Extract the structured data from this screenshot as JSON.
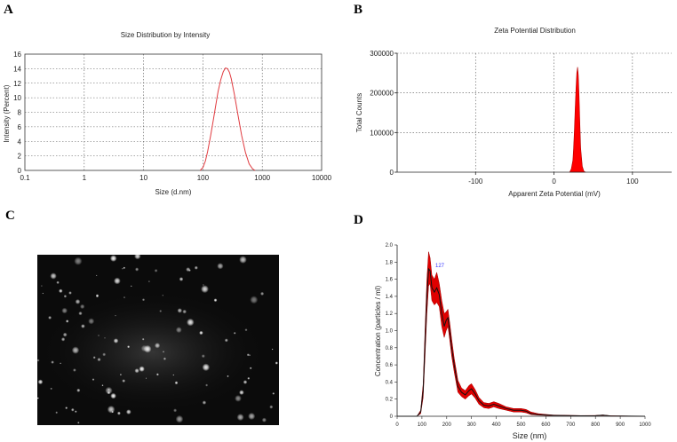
{
  "panels": {
    "a": {
      "letter": "A"
    },
    "b": {
      "letter": "B"
    },
    "c": {
      "letter": "C"
    },
    "d": {
      "letter": "D"
    }
  },
  "chart_data": [
    {
      "id": "size-distribution",
      "type": "line",
      "title": "Size Distribution by Intensity",
      "xlabel": "Size (d.nm)",
      "ylabel": "Intensity (Percent)",
      "x_scale": "log",
      "xlim": [
        0.1,
        10000
      ],
      "ylim": [
        0,
        16
      ],
      "x_ticks": [
        0.1,
        1,
        10,
        100,
        1000,
        10000
      ],
      "x_tick_labels": [
        "0.1",
        "1",
        "10",
        "100",
        "1000",
        "10000"
      ],
      "y_ticks": [
        0,
        2,
        4,
        6,
        8,
        10,
        12,
        14,
        16
      ],
      "y_tick_labels": [
        "0",
        "2",
        "4",
        "6",
        "8",
        "10",
        "12",
        "14",
        "16"
      ],
      "grid": true,
      "line_color": "#e0393e",
      "series": [
        {
          "x": [
            90,
            100,
            110,
            120,
            135,
            150,
            165,
            180,
            200,
            220,
            240,
            260,
            280,
            300,
            340,
            390,
            450,
            520,
            600,
            690,
            760
          ],
          "y": [
            0,
            0.4,
            1.3,
            2.6,
            4.8,
            7.0,
            9.0,
            10.9,
            12.5,
            13.6,
            14.1,
            14.0,
            13.5,
            12.6,
            10.4,
            7.6,
            4.8,
            2.5,
            0.9,
            0.2,
            0
          ]
        }
      ]
    },
    {
      "id": "zeta-potential",
      "type": "area",
      "title": "Zeta Potential Distribution",
      "xlabel": "Apparent Zeta Potential (mV)",
      "ylabel": "Total Counts",
      "xlim": [
        -200,
        150
      ],
      "ylim": [
        0,
        300000
      ],
      "x_ticks": [
        -100,
        0,
        100
      ],
      "x_tick_labels": [
        "-100",
        "0",
        "100"
      ],
      "y_ticks": [
        0,
        100000,
        200000,
        300000
      ],
      "y_tick_labels": [
        "0",
        "100000",
        "200000",
        "300000"
      ],
      "grid": true,
      "fill_color": "#ff0000",
      "series": [
        {
          "x": [
            20,
            22,
            24,
            25,
            26,
            27,
            28,
            29,
            30,
            31,
            32,
            33,
            34,
            36,
            38,
            40
          ],
          "y": [
            0,
            8000,
            30000,
            60000,
            105000,
            160000,
            210000,
            250000,
            265000,
            245000,
            190000,
            120000,
            60000,
            15000,
            3000,
            0
          ]
        }
      ]
    },
    {
      "id": "nta-concentration",
      "type": "line",
      "title": "",
      "xlabel": "Size (nm)",
      "ylabel": "Concentration (particles / ml)",
      "xlim": [
        0,
        1000
      ],
      "ylim": [
        0,
        2.0
      ],
      "x_ticks": [
        0,
        100,
        200,
        300,
        400,
        500,
        600,
        700,
        800,
        900,
        1000
      ],
      "x_tick_labels": [
        "0",
        "100",
        "200",
        "300",
        "400",
        "500",
        "600",
        "700",
        "800",
        "900",
        "1000"
      ],
      "y_ticks": [
        0,
        0.2,
        0.4,
        0.6,
        0.8,
        1.0,
        1.2,
        1.4,
        1.6,
        1.8,
        2.0
      ],
      "y_tick_labels": [
        "0",
        "0.2",
        "0.4",
        "0.6",
        "0.8",
        "1.0",
        "1.2",
        "1.4",
        "1.6",
        "1.8",
        "2.0"
      ],
      "grid": false,
      "peak_annotation": "127",
      "band_color": "#e00000",
      "series": [
        {
          "name": "mean",
          "x": [
            0,
            80,
            95,
            105,
            112,
            120,
            127,
            133,
            140,
            150,
            160,
            170,
            180,
            190,
            198,
            205,
            212,
            220,
            230,
            245,
            260,
            275,
            290,
            300,
            315,
            330,
            350,
            370,
            390,
            410,
            440,
            470,
            500,
            520,
            540,
            570,
            600,
            630,
            680,
            740,
            800,
            830,
            860,
            1000
          ],
          "y": [
            0,
            0,
            0.05,
            0.3,
            0.8,
            1.4,
            1.72,
            1.7,
            1.5,
            1.45,
            1.5,
            1.42,
            1.2,
            1.05,
            1.12,
            1.15,
            1.0,
            0.8,
            0.6,
            0.35,
            0.28,
            0.25,
            0.3,
            0.32,
            0.26,
            0.18,
            0.13,
            0.12,
            0.14,
            0.12,
            0.09,
            0.07,
            0.07,
            0.06,
            0.03,
            0.02,
            0.015,
            0.01,
            0.008,
            0.005,
            0.006,
            0.012,
            0.004,
            0
          ]
        },
        {
          "name": "upper",
          "x": [
            0,
            80,
            95,
            105,
            112,
            120,
            127,
            133,
            140,
            150,
            160,
            170,
            180,
            190,
            198,
            205,
            212,
            220,
            230,
            245,
            260,
            275,
            290,
            300,
            315,
            330,
            350,
            370,
            390,
            410,
            440,
            470,
            500,
            520,
            540,
            570,
            600,
            630,
            680,
            740,
            800,
            830,
            860,
            1000
          ],
          "y": [
            0,
            0,
            0.07,
            0.38,
            0.95,
            1.6,
            1.92,
            1.85,
            1.65,
            1.6,
            1.68,
            1.55,
            1.35,
            1.2,
            1.22,
            1.25,
            1.1,
            0.9,
            0.68,
            0.42,
            0.33,
            0.3,
            0.36,
            0.38,
            0.31,
            0.22,
            0.16,
            0.15,
            0.17,
            0.15,
            0.11,
            0.09,
            0.09,
            0.08,
            0.05,
            0.03,
            0.022,
            0.015,
            0.011,
            0.008,
            0.009,
            0.016,
            0.006,
            0
          ]
        },
        {
          "name": "lower",
          "x": [
            0,
            80,
            95,
            105,
            112,
            120,
            127,
            133,
            140,
            150,
            160,
            170,
            180,
            190,
            198,
            205,
            212,
            220,
            230,
            245,
            260,
            275,
            290,
            300,
            315,
            330,
            350,
            370,
            390,
            410,
            440,
            470,
            500,
            520,
            540,
            570,
            600,
            630,
            680,
            740,
            800,
            830,
            860,
            1000
          ],
          "y": [
            0,
            0,
            0.03,
            0.22,
            0.65,
            1.2,
            1.52,
            1.55,
            1.35,
            1.3,
            1.33,
            1.28,
            1.05,
            0.92,
            1.0,
            1.05,
            0.9,
            0.7,
            0.52,
            0.28,
            0.23,
            0.2,
            0.24,
            0.26,
            0.21,
            0.14,
            0.1,
            0.09,
            0.11,
            0.09,
            0.07,
            0.05,
            0.05,
            0.04,
            0.02,
            0.012,
            0.009,
            0.006,
            0.005,
            0.003,
            0.004,
            0.008,
            0.002,
            0
          ]
        }
      ]
    }
  ]
}
